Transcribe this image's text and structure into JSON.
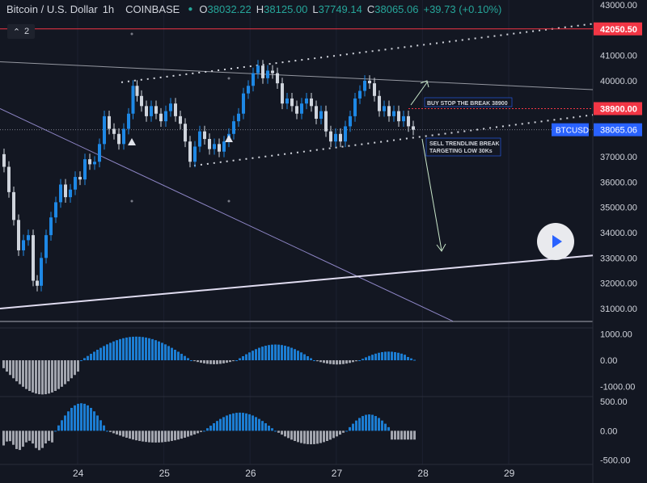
{
  "header": {
    "symbol": "Bitcoin / U.S. Dollar",
    "interval": "1h",
    "exchange": "COINBASE",
    "o_label": "O",
    "o_value": "38032.22",
    "h_label": "H",
    "h_value": "38125.00",
    "l_label": "L",
    "l_value": "37749.14",
    "c_label": "C",
    "c_value": "38065.06",
    "change": "+39.73 (+0.10%)"
  },
  "indicators_toggle": {
    "count": "2"
  },
  "colors": {
    "background": "#131722",
    "up": "#1e88e5",
    "down": "#cfd4dc",
    "hist_up": "#1e88e5",
    "hist_down": "#b2b5be",
    "resistance": "#f23645",
    "buy_level": "#f23645",
    "price_label": "#2962ff"
  },
  "chart_data": {
    "type": "candlestick",
    "y_ticks": [
      "43000.00",
      "42000.00",
      "41000.00",
      "40000.00",
      "39000.00",
      "38000.00",
      "37000.00",
      "36000.00",
      "35000.00",
      "34000.00",
      "33000.00",
      "32000.00",
      "31000.00"
    ],
    "x_ticks": [
      "24",
      "25",
      "26",
      "27",
      "28",
      "29"
    ],
    "ylim": [
      30300,
      43000
    ],
    "xlim": [
      23.1,
      30.0
    ],
    "price_labels": [
      {
        "text": "42050.50",
        "value": 42050.5,
        "kind": "resistance"
      },
      {
        "text": "38900.00",
        "value": 38900,
        "kind": "buy"
      },
      {
        "text": "38065.06",
        "value": 38065.06,
        "kind": "last"
      }
    ],
    "symbol_tag": "BTCUSD",
    "annotations": [
      {
        "text": "BUY STOP THE BREAK 38900"
      },
      {
        "text": "SELL TRENDLINE BREAK"
      },
      {
        "text": "TARGETING LOW 30Ks"
      }
    ],
    "osc1": {
      "ticks": [
        "1000.00",
        "0.00",
        "-1000.00"
      ],
      "ylim": [
        -1350,
        1200
      ]
    },
    "osc2": {
      "ticks": [
        "500.00",
        "0.00",
        "-500.00"
      ],
      "ylim": [
        -560,
        570
      ]
    }
  }
}
